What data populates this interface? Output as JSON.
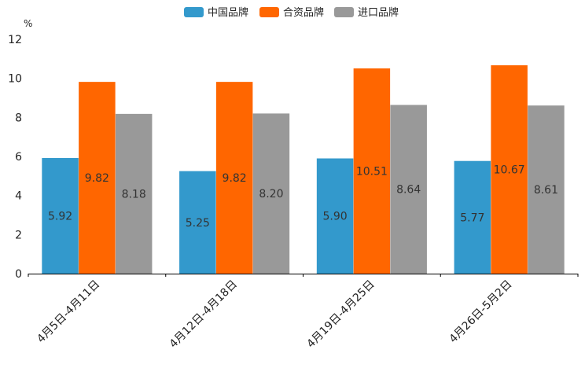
{
  "chart_data": {
    "type": "bar",
    "unit": "%",
    "categories": [
      "4月5日-4月11日",
      "4月12日-4月18日",
      "4月19日-4月25日",
      "4月26日-5月2日"
    ],
    "series": [
      {
        "name": "中国品牌",
        "color": "#3399cc",
        "values": [
          5.92,
          5.25,
          5.9,
          5.77
        ],
        "labels": [
          "5.92",
          "5.25",
          "5.90",
          "5.77"
        ]
      },
      {
        "name": "合资品牌",
        "color": "#ff6600",
        "values": [
          9.82,
          9.82,
          10.51,
          10.67
        ],
        "labels": [
          "9.82",
          "9.82",
          "10.51",
          "10.67"
        ]
      },
      {
        "name": "进口品牌",
        "color": "#999999",
        "values": [
          8.18,
          8.2,
          8.64,
          8.61
        ],
        "labels": [
          "8.18",
          "8.20",
          "8.64",
          "8.61"
        ]
      }
    ],
    "ylim": [
      0,
      12
    ],
    "yticks": [
      "0",
      "2",
      "4",
      "6",
      "8",
      "10",
      "12"
    ],
    "legend_position": "top-center",
    "grid": false
  }
}
